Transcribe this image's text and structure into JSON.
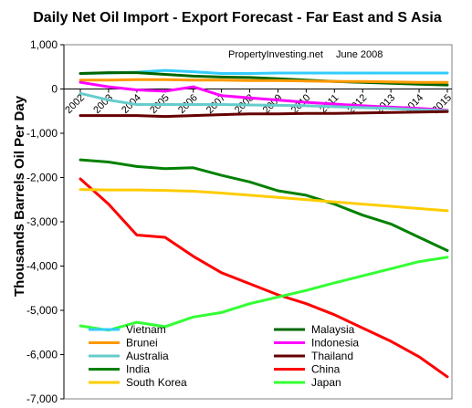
{
  "chart_data": {
    "type": "line",
    "title": "Daily Net Oil Import - Export Forecast -  Far East and S Asia",
    "annotation_source": "PropertyInvesting.net",
    "annotation_date": "June 2008",
    "ylabel": "Thousands Barrels Oil Per Day",
    "xlabel": "",
    "x": [
      "2002",
      "2003",
      "2004",
      "2005",
      "2006",
      "2007",
      "2008",
      "2009",
      "2010",
      "2011",
      "2012",
      "2013",
      "2014",
      "2015"
    ],
    "ylim": [
      -7000,
      1000
    ],
    "yticks": [
      1000,
      0,
      -1000,
      -2000,
      -3000,
      -4000,
      -5000,
      -6000,
      -7000
    ],
    "ytick_labels": [
      "1,000",
      "0",
      "-1,000",
      "-2,000",
      "-3,000",
      "-4,000",
      "-5,000",
      "-6,000",
      "-7,000"
    ],
    "grid": false,
    "legend_position": "bottom-inside",
    "series": [
      {
        "name": "Vietnam",
        "color": "#33ccff",
        "values": [
          350,
          360,
          380,
          420,
          390,
          350,
          350,
          360,
          360,
          360,
          360,
          360,
          360,
          360
        ]
      },
      {
        "name": "Malaysia",
        "color": "#006600",
        "values": [
          350,
          370,
          370,
          330,
          290,
          270,
          260,
          230,
          200,
          170,
          150,
          130,
          110,
          90
        ]
      },
      {
        "name": "Brunei",
        "color": "#ff9900",
        "values": [
          200,
          200,
          210,
          210,
          200,
          200,
          190,
          190,
          180,
          170,
          170,
          160,
          150,
          150
        ]
      },
      {
        "name": "Indonesia",
        "color": "#ff00ff",
        "values": [
          150,
          50,
          -20,
          -50,
          50,
          -150,
          -200,
          -250,
          -300,
          -340,
          -380,
          -410,
          -440,
          -480
        ]
      },
      {
        "name": "Australia",
        "color": "#66cccc",
        "values": [
          -100,
          -250,
          -350,
          -350,
          -350,
          -350,
          -360,
          -370,
          -380,
          -400,
          -420,
          -440,
          -470,
          -490
        ]
      },
      {
        "name": "Thailand",
        "color": "#660000",
        "values": [
          -600,
          -600,
          -600,
          -620,
          -600,
          -580,
          -560,
          -560,
          -550,
          -550,
          -540,
          -530,
          -520,
          -510
        ]
      },
      {
        "name": "India",
        "color": "#008000",
        "values": [
          -1600,
          -1650,
          -1750,
          -1800,
          -1780,
          -1950,
          -2100,
          -2300,
          -2400,
          -2600,
          -2850,
          -3050,
          -3350,
          -3650
        ]
      },
      {
        "name": "China",
        "color": "#ff0000",
        "values": [
          -2030,
          -2600,
          -3300,
          -3350,
          -3780,
          -4150,
          -4400,
          -4650,
          -4850,
          -5100,
          -5400,
          -5700,
          -6050,
          -6500
        ]
      },
      {
        "name": "South Korea",
        "color": "#ffcc00",
        "values": [
          -2270,
          -2280,
          -2280,
          -2290,
          -2310,
          -2350,
          -2400,
          -2450,
          -2500,
          -2550,
          -2600,
          -2650,
          -2700,
          -2750
        ]
      },
      {
        "name": "Japan",
        "color": "#33ff33",
        "values": [
          -5350,
          -5450,
          -5270,
          -5370,
          -5150,
          -5050,
          -4850,
          -4700,
          -4550,
          -4380,
          -4220,
          -4060,
          -3900,
          -3800
        ]
      }
    ]
  }
}
